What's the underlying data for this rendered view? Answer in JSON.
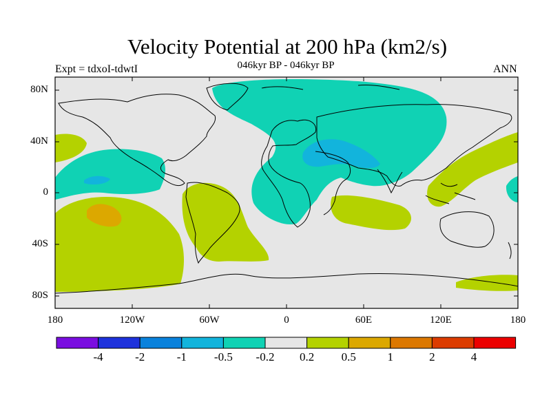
{
  "title": "Velocity Potential at 200 hPa (km2/s)",
  "experiment": "Expt = tdxoI-tdwtI",
  "period": "046kyr BP - 046kyr BP",
  "season": "ANN",
  "lat_ticks": [
    "80N",
    "40N",
    "0",
    "40S",
    "80S"
  ],
  "lon_ticks": [
    "180",
    "120W",
    "60W",
    "0",
    "60E",
    "120E",
    "180"
  ],
  "colorbar": {
    "labels": [
      "-4",
      "-2",
      "-1",
      "-0.5",
      "-0.2",
      "0.2",
      "0.5",
      "1",
      "2",
      "4"
    ],
    "colors": [
      "#7a0ee0",
      "#1e32dc",
      "#0a82dc",
      "#12b4dc",
      "#10d2b4",
      "#e6e6e6",
      "#b4d200",
      "#dca800",
      "#dc7800",
      "#dc3c00",
      "#ec0000"
    ]
  },
  "fill_colors": {
    "ocean_background": "#e6e6e6",
    "negative_weak": "#10d2b4",
    "negative_moderate": "#12b4dc",
    "positive_weak": "#b4d200",
    "positive_moderate": "#dca800"
  }
}
